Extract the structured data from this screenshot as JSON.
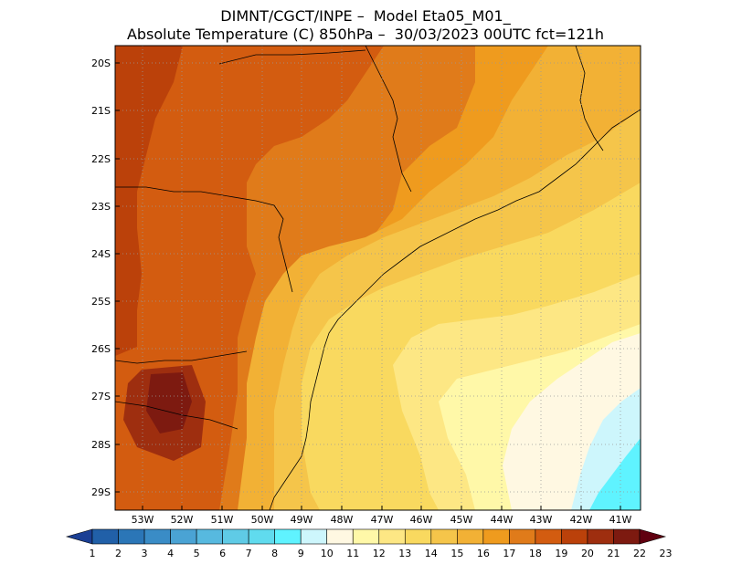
{
  "title": {
    "line1": "DIMNT/CGCT/INPE –  Model Eta05_M01_",
    "line2": "Absolute Temperature (C) 850hPa –  30/03/2023 00UTC fct=121h"
  },
  "map": {
    "lat_labels": [
      "20S",
      "21S",
      "22S",
      "23S",
      "24S",
      "25S",
      "26S",
      "27S",
      "28S",
      "29S"
    ],
    "lon_labels": [
      "53W",
      "52W",
      "51W",
      "50W",
      "49W",
      "48W",
      "47W",
      "46W",
      "45W",
      "44W",
      "43W",
      "42W",
      "41W"
    ],
    "regions": [
      "band-19-west",
      "band-18",
      "band-17",
      "band-16",
      "band-15",
      "band-14",
      "band-13",
      "band-12",
      "band-11",
      "band-10",
      "band-9",
      "band-20",
      "band-21",
      "band-22"
    ]
  },
  "colorbar": {
    "labels": [
      "1",
      "2",
      "3",
      "4",
      "5",
      "6",
      "7",
      "8",
      "9",
      "10",
      "11",
      "12",
      "13",
      "14",
      "15",
      "16",
      "17",
      "18",
      "19",
      "20",
      "21",
      "22",
      "23"
    ],
    "colors": [
      "#1b3f94",
      "#2160a8",
      "#2b76b7",
      "#3a8cc6",
      "#4aa3d4",
      "#57b9df",
      "#5fcbe6",
      "#60dbee",
      "#5ff3ff",
      "#cdf6fc",
      "#fff8e2",
      "#fff8a8",
      "#fde784",
      "#f9d95f",
      "#f5c54a",
      "#f2b135",
      "#ef9b1e",
      "#e07b1a",
      "#d35c10",
      "#bb410a",
      "#9e2e0f",
      "#7d1a10",
      "#600010"
    ]
  }
}
